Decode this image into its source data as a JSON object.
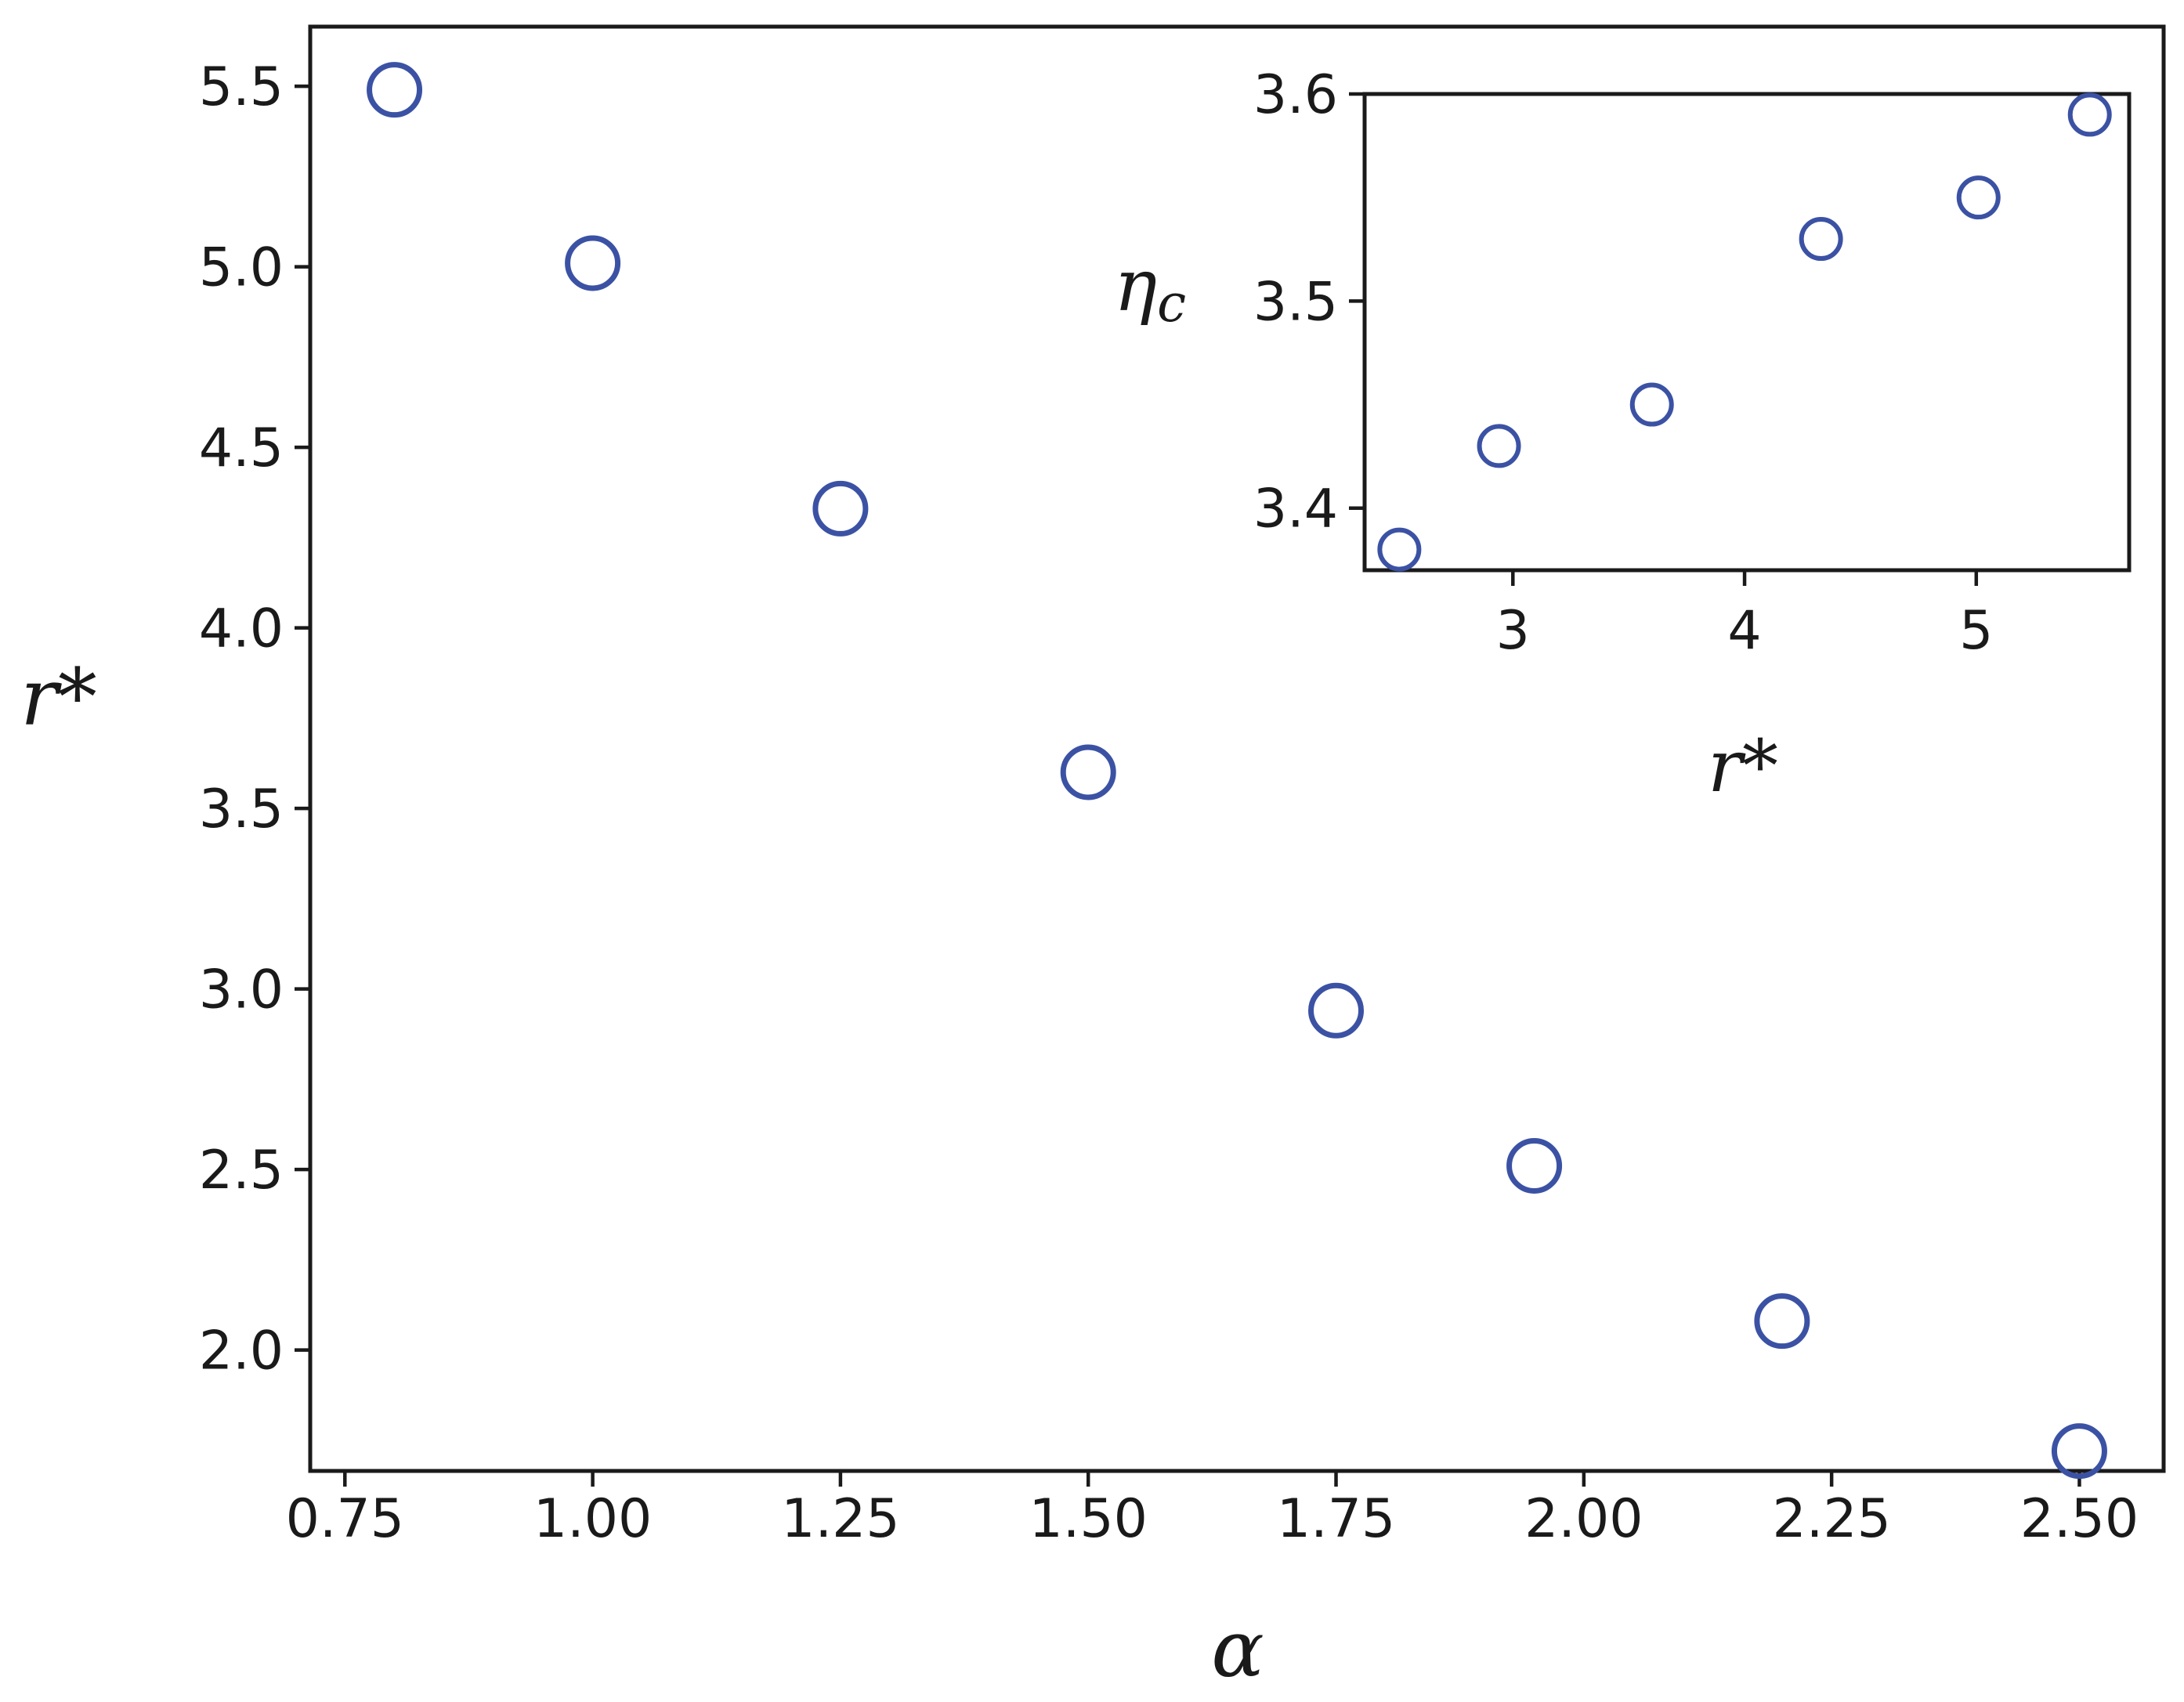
{
  "chart_data": [
    {
      "type": "scatter",
      "role": "main",
      "xlabel": "α",
      "ylabel": "r*",
      "xlim": [
        0.715,
        2.585
      ],
      "ylim": [
        1.665,
        5.665
      ],
      "xticks": [
        0.75,
        1.0,
        1.25,
        1.5,
        1.75,
        2.0,
        2.25,
        2.5
      ],
      "xtick_labels": [
        "0.75",
        "1.00",
        "1.25",
        "1.50",
        "1.75",
        "2.00",
        "2.25",
        "2.50"
      ],
      "yticks": [
        2.0,
        2.5,
        3.0,
        3.5,
        4.0,
        4.5,
        5.0,
        5.5
      ],
      "ytick_labels": [
        "2.0",
        "2.5",
        "3.0",
        "3.5",
        "4.0",
        "4.5",
        "5.0",
        "5.5"
      ],
      "marker": "hollow-circle",
      "marker_color": "#3b52a4",
      "grid": false,
      "series": [
        {
          "x": [
            0.8,
            1.0,
            1.25,
            1.5,
            1.75,
            1.95,
            2.2,
            2.5
          ],
          "y": [
            5.49,
            5.01,
            4.33,
            3.6,
            2.94,
            2.51,
            2.08,
            1.72
          ]
        }
      ]
    },
    {
      "type": "scatter",
      "role": "inset",
      "xlabel": "r*",
      "ylabel": "η",
      "ylabel_sub": "c",
      "xlim": [
        2.36,
        5.66
      ],
      "ylim": [
        3.37,
        3.6
      ],
      "xticks": [
        3,
        4,
        5
      ],
      "xtick_labels": [
        "3",
        "4",
        "5"
      ],
      "yticks": [
        3.4,
        3.5,
        3.6
      ],
      "ytick_labels": [
        "3.4",
        "3.5",
        "3.6"
      ],
      "marker": "hollow-circle",
      "marker_color": "#3b52a4",
      "grid": false,
      "series": [
        {
          "x": [
            2.51,
            2.94,
            3.6,
            4.33,
            5.01,
            5.49
          ],
          "y": [
            3.38,
            3.43,
            3.45,
            3.53,
            3.55,
            3.59
          ]
        }
      ]
    }
  ]
}
